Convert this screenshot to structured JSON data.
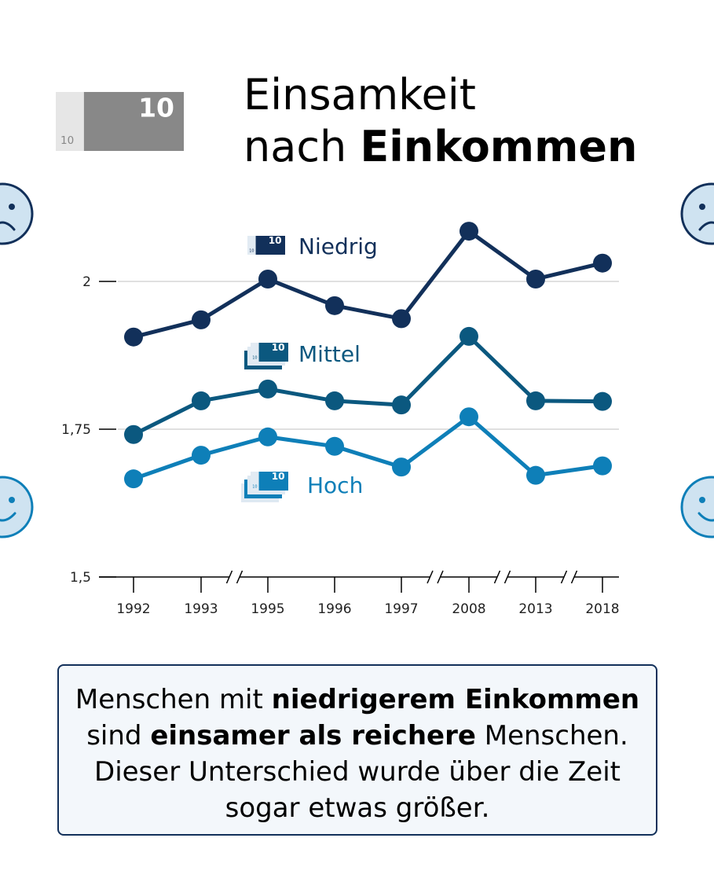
{
  "title": {
    "line1": "Einsamkeit",
    "line2_regular": "nach ",
    "line2_bold": "Einkommen"
  },
  "banknote_icon": {
    "label": "10",
    "small_label": "10"
  },
  "chart_data": {
    "type": "line",
    "x": [
      "1992",
      "1993",
      "1995",
      "1996",
      "1997",
      "2008",
      "2013",
      "2018"
    ],
    "ylim": [
      1.5,
      2.1
    ],
    "yticks": [
      {
        "v": 1.5,
        "label": "1,5"
      },
      {
        "v": 1.75,
        "label": "1,75"
      },
      {
        "v": 2,
        "label": "2"
      }
    ],
    "grid": true,
    "axis_breaks_after": [
      "1993",
      "1997",
      "2008",
      "2013"
    ],
    "series": [
      {
        "name": "Niedrig",
        "color": "#12305a",
        "values": [
          1.906,
          1.935,
          2.004,
          1.959,
          1.937,
          2.085,
          2.004,
          2.031
        ]
      },
      {
        "name": "Mittel",
        "color": "#0b587f",
        "values": [
          1.741,
          1.798,
          1.818,
          1.798,
          1.791,
          1.907,
          1.798,
          1.797
        ]
      },
      {
        "name": "Hoch",
        "color": "#0e7fb8",
        "values": [
          1.666,
          1.706,
          1.737,
          1.721,
          1.686,
          1.771,
          1.672,
          1.688
        ]
      }
    ]
  },
  "note": {
    "p1": "Menschen mit ",
    "b1": "niedrigerem Einkommen",
    "p2": " sind ",
    "b2": "einsamer als reichere",
    "p3": " Menschen. Dieser Unterschied wurde über die Zeit sogar etwas größer."
  },
  "icons": {
    "sad": "sad-face-icon",
    "happy": "happy-face-icon",
    "banknote": "banknote-icon"
  }
}
